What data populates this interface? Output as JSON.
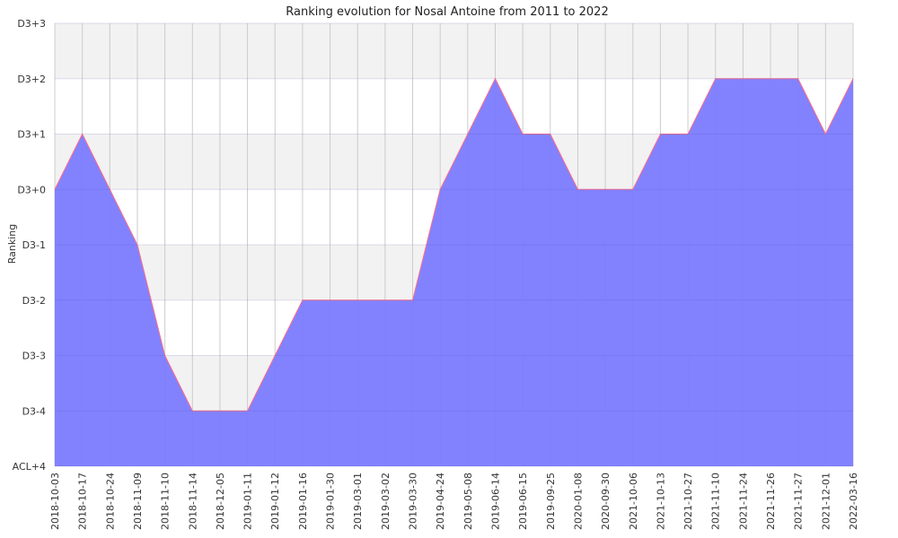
{
  "chart_data": {
    "type": "area",
    "title": "Ranking evolution for Nosal Antoine from 2011 to 2022",
    "ylabel": "Ranking",
    "xlabel": "",
    "grid": true,
    "legend": "none",
    "y_levels": [
      "ACL+4",
      "D3-4",
      "D3-3",
      "D3-2",
      "D3-1",
      "D3+0",
      "D3+1",
      "D3+2",
      "D3+3"
    ],
    "x": [
      "2018-10-03",
      "2018-10-17",
      "2018-10-24",
      "2018-11-09",
      "2018-11-10",
      "2018-11-14",
      "2018-12-05",
      "2019-01-11",
      "2019-01-12",
      "2019-01-16",
      "2019-01-30",
      "2019-03-01",
      "2019-03-02",
      "2019-03-30",
      "2019-04-24",
      "2019-05-08",
      "2019-06-14",
      "2019-06-15",
      "2019-09-25",
      "2020-01-08",
      "2020-09-30",
      "2021-10-06",
      "2021-10-13",
      "2021-10-27",
      "2021-11-10",
      "2021-11-24",
      "2021-11-26",
      "2021-11-27",
      "2021-12-01",
      "2022-03-16"
    ],
    "series": [
      {
        "values": [
          "D3+0",
          "D3+1",
          "D3+0",
          "D3-1",
          "D3-3",
          "D3-4",
          "D3-4",
          "D3-4",
          "D3-3",
          "D3-2",
          "D3-2",
          "D3-2",
          "D3-2",
          "D3-2",
          "D3+0",
          "D3+1",
          "D3+2",
          "D3+1",
          "D3+1",
          "D3+0",
          "D3+0",
          "D3+0",
          "D3+1",
          "D3+1",
          "D3+2",
          "D3+2",
          "D3+2",
          "D3+2",
          "D3+1",
          "D3+2"
        ]
      }
    ],
    "colors": {
      "fill": "#7b7bff",
      "line": "#ff6b8a",
      "band": "#f2f2f2",
      "grid": "#cccccc"
    }
  }
}
